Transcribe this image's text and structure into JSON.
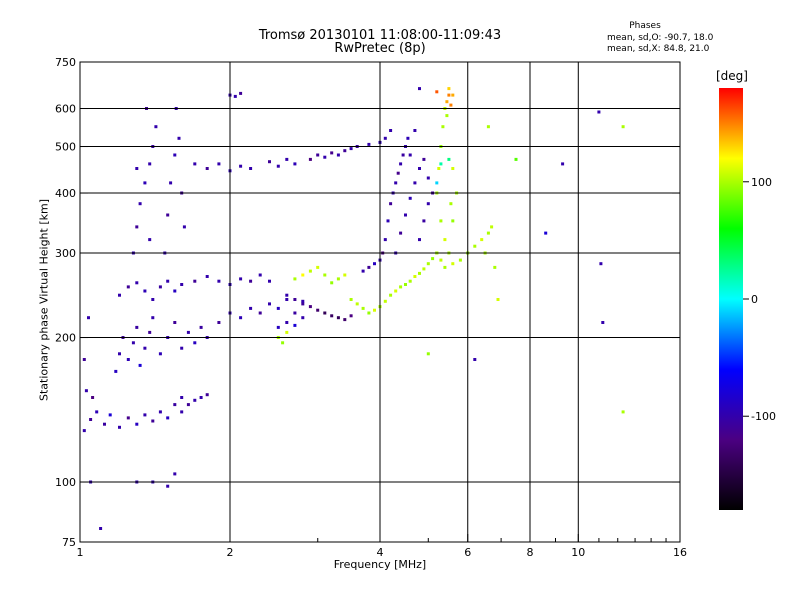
{
  "header": {
    "title_line1": "Tromsø 20130101 11:08:00-11:09:43",
    "title_line2": "RwPretec (8p)"
  },
  "phases": {
    "title": "Phases",
    "o_line": "mean, sd,O: -90.7, 18.0",
    "x_line": "mean, sd,X:  84.8, 21.0"
  },
  "colorbar": {
    "unit": "[deg]",
    "ticks": [
      "100",
      "0",
      "-100"
    ],
    "tick_values": [
      100,
      0,
      -100
    ],
    "range": [
      -180,
      180
    ],
    "colors": [
      "#000000",
      "#4b0082",
      "#0000ff",
      "#00ffff",
      "#00ff00",
      "#ffff00",
      "#ff0000"
    ]
  },
  "chart_data": {
    "type": "scatter",
    "xlabel": "Frequency [MHz]",
    "ylabel": "Stationary phase Virtual Height [km]",
    "xscale": "log",
    "yscale": "log",
    "xlim": [
      1,
      16
    ],
    "ylim": [
      75,
      750
    ],
    "xticks": [
      1,
      2,
      4,
      6,
      8,
      10,
      16
    ],
    "xtick_labels": [
      "1",
      "2",
      "4",
      "6",
      "8",
      "10",
      "16"
    ],
    "yticks": [
      75,
      100,
      200,
      300,
      400,
      500,
      600,
      750
    ],
    "ytick_labels": [
      "75",
      "100",
      "200",
      "300",
      "400",
      "500",
      "600",
      "750"
    ],
    "grid": true,
    "series": [
      {
        "points": [
          [
            1.02,
            128,
            -100
          ],
          [
            1.05,
            135,
            -110
          ],
          [
            1.08,
            140,
            -95
          ],
          [
            1.12,
            132,
            -105
          ],
          [
            1.15,
            138,
            -80
          ],
          [
            1.2,
            130,
            -100
          ],
          [
            1.25,
            136,
            -115
          ],
          [
            1.3,
            132,
            -90
          ],
          [
            1.35,
            138,
            -100
          ],
          [
            1.4,
            134,
            -110
          ],
          [
            1.45,
            140,
            -100
          ],
          [
            1.5,
            136,
            -90
          ],
          [
            1.55,
            145,
            -105
          ],
          [
            1.6,
            150,
            -100
          ],
          [
            1.03,
            155,
            -100
          ],
          [
            1.06,
            150,
            -120
          ],
          [
            1.02,
            180,
            -110
          ],
          [
            1.04,
            220,
            -100
          ],
          [
            1.05,
            100,
            -100
          ],
          [
            1.18,
            170,
            -90
          ],
          [
            1.2,
            185,
            -100
          ],
          [
            1.22,
            200,
            -110
          ],
          [
            1.25,
            180,
            -95
          ],
          [
            1.28,
            195,
            -100
          ],
          [
            1.3,
            210,
            -105
          ],
          [
            1.32,
            175,
            -80
          ],
          [
            1.35,
            190,
            -100
          ],
          [
            1.38,
            205,
            -110
          ],
          [
            1.4,
            220,
            -100
          ],
          [
            1.45,
            185,
            -95
          ],
          [
            1.5,
            200,
            -100
          ],
          [
            1.55,
            215,
            -110
          ],
          [
            1.6,
            190,
            -100
          ],
          [
            1.65,
            205,
            -100
          ],
          [
            1.7,
            195,
            -90
          ],
          [
            1.75,
            210,
            -105
          ],
          [
            1.8,
            200,
            -100
          ],
          [
            1.9,
            215,
            -110
          ],
          [
            2.0,
            225,
            -100
          ],
          [
            2.1,
            220,
            -95
          ],
          [
            2.2,
            230,
            -100
          ],
          [
            2.3,
            225,
            -110
          ],
          [
            2.4,
            235,
            -100
          ],
          [
            2.5,
            230,
            -90
          ],
          [
            2.6,
            240,
            -100
          ],
          [
            2.7,
            225,
            -105
          ],
          [
            2.8,
            235,
            -110
          ],
          [
            1.2,
            245,
            -100
          ],
          [
            1.25,
            255,
            -110
          ],
          [
            1.3,
            260,
            -100
          ],
          [
            1.35,
            250,
            -95
          ],
          [
            1.4,
            240,
            -100
          ],
          [
            1.45,
            255,
            -105
          ],
          [
            1.5,
            262,
            -100
          ],
          [
            1.55,
            250,
            -90
          ],
          [
            1.6,
            258,
            -100
          ],
          [
            1.7,
            262,
            -110
          ],
          [
            1.8,
            268,
            -100
          ],
          [
            1.9,
            262,
            -100
          ],
          [
            2.0,
            258,
            -95
          ],
          [
            2.1,
            265,
            -100
          ],
          [
            2.2,
            262,
            -110
          ],
          [
            2.3,
            270,
            -100
          ],
          [
            2.4,
            262,
            -100
          ],
          [
            1.28,
            300,
            -100
          ],
          [
            1.3,
            340,
            -110
          ],
          [
            1.32,
            380,
            -100
          ],
          [
            1.35,
            420,
            -95
          ],
          [
            1.38,
            460,
            -100
          ],
          [
            1.4,
            500,
            -105
          ],
          [
            1.42,
            550,
            -100
          ],
          [
            1.36,
            600,
            -110
          ],
          [
            1.38,
            320,
            -100
          ],
          [
            1.3,
            450,
            -100
          ],
          [
            1.48,
            300,
            -100
          ],
          [
            1.5,
            360,
            -110
          ],
          [
            1.52,
            420,
            -100
          ],
          [
            1.55,
            480,
            -95
          ],
          [
            1.58,
            520,
            -100
          ],
          [
            1.56,
            600,
            -100
          ],
          [
            1.6,
            400,
            -110
          ],
          [
            1.62,
            340,
            -100
          ],
          [
            1.7,
            460,
            -100
          ],
          [
            1.8,
            450,
            -110
          ],
          [
            1.9,
            460,
            -100
          ],
          [
            2.0,
            445,
            -95
          ],
          [
            2.1,
            455,
            -100
          ],
          [
            2.2,
            450,
            -100
          ],
          [
            2.4,
            465,
            -110
          ],
          [
            2.5,
            455,
            -100
          ],
          [
            2.6,
            470,
            -100
          ],
          [
            2.7,
            460,
            -95
          ],
          [
            2.0,
            640,
            -100
          ],
          [
            2.1,
            645,
            -110
          ],
          [
            2.05,
            636,
            -100
          ],
          [
            2.9,
            470,
            -120
          ],
          [
            3.0,
            480,
            -110
          ],
          [
            3.1,
            475,
            -100
          ],
          [
            3.2,
            485,
            -115
          ],
          [
            3.3,
            480,
            -100
          ],
          [
            3.4,
            490,
            -110
          ],
          [
            3.5,
            495,
            -100
          ],
          [
            3.6,
            500,
            -105
          ],
          [
            3.8,
            505,
            -100
          ],
          [
            4.0,
            510,
            -95
          ],
          [
            4.1,
            520,
            -100
          ],
          [
            4.2,
            540,
            -100
          ],
          [
            2.6,
            245,
            -100
          ],
          [
            2.7,
            240,
            -110
          ],
          [
            2.8,
            238,
            -100
          ],
          [
            2.9,
            232,
            -120
          ],
          [
            3.0,
            228,
            -130
          ],
          [
            3.1,
            225,
            -140
          ],
          [
            3.2,
            222,
            -135
          ],
          [
            3.3,
            220,
            -140
          ],
          [
            3.4,
            218,
            -130
          ],
          [
            3.5,
            222,
            -120
          ],
          [
            2.5,
            210,
            -90
          ],
          [
            2.6,
            215,
            -100
          ],
          [
            2.7,
            212,
            -80
          ],
          [
            2.8,
            220,
            -100
          ],
          [
            2.5,
            200,
            100
          ],
          [
            2.55,
            195,
            95
          ],
          [
            2.6,
            205,
            110
          ],
          [
            2.7,
            265,
            100
          ],
          [
            2.8,
            270,
            120
          ],
          [
            2.9,
            275,
            105
          ],
          [
            3.0,
            280,
            110
          ],
          [
            3.1,
            270,
            100
          ],
          [
            3.2,
            260,
            95
          ],
          [
            3.3,
            265,
            100
          ],
          [
            3.4,
            270,
            110
          ],
          [
            3.5,
            240,
            100
          ],
          [
            3.6,
            235,
            105
          ],
          [
            3.7,
            230,
            100
          ],
          [
            3.8,
            225,
            95
          ],
          [
            3.9,
            228,
            110
          ],
          [
            4.0,
            232,
            100
          ],
          [
            4.1,
            238,
            105
          ],
          [
            4.2,
            245,
            100
          ],
          [
            4.3,
            250,
            110
          ],
          [
            4.4,
            255,
            100
          ],
          [
            4.5,
            258,
            95
          ],
          [
            4.6,
            262,
            100
          ],
          [
            4.7,
            268,
            110
          ],
          [
            4.8,
            272,
            100
          ],
          [
            4.9,
            278,
            105
          ],
          [
            5.0,
            285,
            100
          ],
          [
            5.1,
            292,
            95
          ],
          [
            5.2,
            300,
            100
          ],
          [
            3.7,
            275,
            -100
          ],
          [
            3.8,
            280,
            -110
          ],
          [
            3.9,
            285,
            -90
          ],
          [
            4.0,
            290,
            -100
          ],
          [
            4.05,
            300,
            -120
          ],
          [
            4.1,
            320,
            -100
          ],
          [
            4.15,
            350,
            -95
          ],
          [
            4.2,
            380,
            -110
          ],
          [
            4.25,
            400,
            -100
          ],
          [
            4.3,
            420,
            -100
          ],
          [
            4.35,
            440,
            -115
          ],
          [
            4.4,
            460,
            -100
          ],
          [
            4.45,
            480,
            -105
          ],
          [
            4.5,
            500,
            -100
          ],
          [
            4.55,
            520,
            -95
          ],
          [
            4.3,
            300,
            -100
          ],
          [
            4.4,
            330,
            -110
          ],
          [
            4.5,
            360,
            -100
          ],
          [
            4.6,
            390,
            -95
          ],
          [
            4.7,
            420,
            -100
          ],
          [
            4.8,
            450,
            -100
          ],
          [
            4.9,
            470,
            -110
          ],
          [
            5.0,
            430,
            -100
          ],
          [
            4.6,
            480,
            -100
          ],
          [
            4.8,
            320,
            -100
          ],
          [
            4.9,
            350,
            -105
          ],
          [
            5.0,
            380,
            -100
          ],
          [
            5.1,
            400,
            -110
          ],
          [
            4.7,
            540,
            -100
          ],
          [
            5.2,
            400,
            100
          ],
          [
            5.25,
            450,
            110
          ],
          [
            5.3,
            500,
            95
          ],
          [
            5.35,
            550,
            100
          ],
          [
            5.4,
            600,
            105
          ],
          [
            5.45,
            620,
            140
          ],
          [
            5.5,
            640,
            150
          ],
          [
            5.45,
            580,
            100
          ],
          [
            5.3,
            350,
            100
          ],
          [
            5.4,
            320,
            110
          ],
          [
            5.5,
            300,
            100
          ],
          [
            5.6,
            350,
            95
          ],
          [
            5.7,
            400,
            100
          ],
          [
            5.6,
            450,
            110
          ],
          [
            5.55,
            380,
            100
          ],
          [
            5.2,
            300,
            100
          ],
          [
            5.3,
            290,
            105
          ],
          [
            5.4,
            280,
            100
          ],
          [
            5.6,
            285,
            110
          ],
          [
            5.8,
            290,
            100
          ],
          [
            6.0,
            300,
            95
          ],
          [
            6.2,
            310,
            100
          ],
          [
            6.4,
            320,
            110
          ],
          [
            6.6,
            330,
            100
          ],
          [
            6.7,
            340,
            105
          ],
          [
            6.5,
            300,
            100
          ],
          [
            6.8,
            280,
            100
          ],
          [
            6.9,
            240,
            110
          ],
          [
            5.3,
            460,
            20
          ],
          [
            5.5,
            470,
            30
          ],
          [
            5.2,
            420,
            -10
          ],
          [
            5.6,
            640,
            140
          ],
          [
            5.5,
            660,
            130
          ],
          [
            5.55,
            610,
            150
          ],
          [
            4.8,
            660,
            -100
          ],
          [
            5.2,
            650,
            160
          ],
          [
            6.6,
            550,
            100
          ],
          [
            7.5,
            470,
            80
          ],
          [
            8.6,
            330,
            -80
          ],
          [
            9.3,
            460,
            -100
          ],
          [
            11.0,
            590,
            -100
          ],
          [
            11.1,
            285,
            -100
          ],
          [
            11.2,
            215,
            -100
          ],
          [
            12.3,
            550,
            100
          ],
          [
            12.3,
            140,
            100
          ],
          [
            6.2,
            180,
            -100
          ],
          [
            5.0,
            185,
            95
          ],
          [
            1.6,
            140,
            -100
          ],
          [
            1.65,
            145,
            -110
          ],
          [
            1.7,
            148,
            -100
          ],
          [
            1.75,
            150,
            -100
          ],
          [
            1.8,
            152,
            -110
          ],
          [
            1.5,
            98,
            -100
          ],
          [
            1.55,
            104,
            -100
          ],
          [
            1.3,
            100,
            -100
          ],
          [
            1.1,
            80,
            -100
          ],
          [
            1.4,
            100,
            -100
          ]
        ]
      }
    ]
  }
}
